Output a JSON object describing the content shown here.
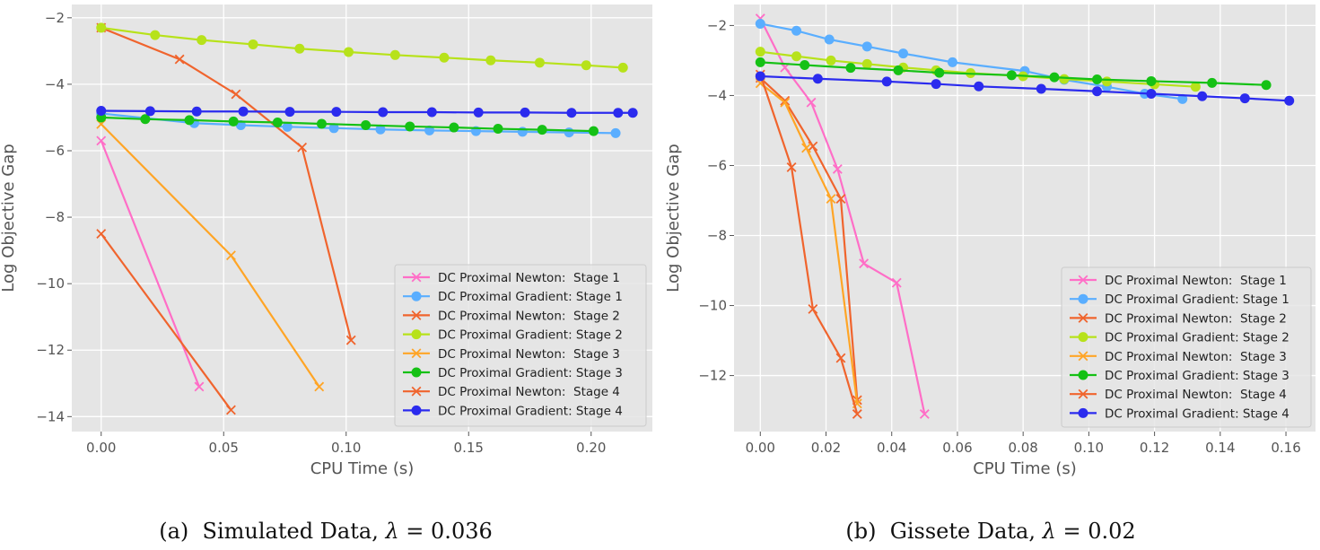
{
  "chart_data": [
    {
      "type": "line",
      "xlabel": "CPU Time (s)",
      "ylabel": "Log Objective Gap",
      "xlim": [
        -0.012,
        0.225
      ],
      "ylim": [
        -14.45,
        -1.6
      ],
      "xticks": [
        0.0,
        0.05,
        0.1,
        0.15,
        0.2
      ],
      "xtick_labels": [
        "0.00",
        "0.05",
        "0.10",
        "0.15",
        "0.20"
      ],
      "yticks": [
        -14,
        -12,
        -10,
        -8,
        -6,
        -4,
        -2
      ],
      "ytick_labels": [
        "−14",
        "−12",
        "−10",
        "−8",
        "−6",
        "−4",
        "−2"
      ],
      "legend_position": "lower-right",
      "caption_prefix": "(a)  Simulated Data, ",
      "caption_symbol": "λ",
      "caption_suffix": " = 0.036",
      "series": [
        {
          "name": "DC Proximal Newton:  Stage 1",
          "color": "#ff6ec7",
          "marker": "x",
          "x": [
            0.0,
            0.04
          ],
          "y": [
            -5.7,
            -13.1
          ]
        },
        {
          "name": "DC Proximal Gradient: Stage 1",
          "color": "#5aaeff",
          "marker": "o",
          "x": [
            0.0,
            0.038,
            0.057,
            0.076,
            0.095,
            0.114,
            0.134,
            0.153,
            0.172,
            0.191,
            0.21
          ],
          "y": [
            -4.88,
            -5.17,
            -5.23,
            -5.28,
            -5.32,
            -5.36,
            -5.39,
            -5.41,
            -5.43,
            -5.45,
            -5.47
          ]
        },
        {
          "name": "DC Proximal Newton:  Stage 2",
          "color": "#f0642d",
          "marker": "x",
          "x": [
            0.0,
            0.032,
            0.055,
            0.082,
            0.102
          ],
          "y": [
            -2.3,
            -3.25,
            -4.3,
            -5.9,
            -11.7
          ]
        },
        {
          "name": "DC Proximal Gradient: Stage 2",
          "color": "#b7e21a",
          "marker": "o",
          "x": [
            0.0,
            0.022,
            0.041,
            0.062,
            0.081,
            0.101,
            0.12,
            0.14,
            0.159,
            0.179,
            0.198,
            0.213
          ],
          "y": [
            -2.3,
            -2.52,
            -2.67,
            -2.8,
            -2.93,
            -3.03,
            -3.12,
            -3.2,
            -3.28,
            -3.35,
            -3.43,
            -3.5
          ]
        },
        {
          "name": "DC Proximal Newton:  Stage 3",
          "color": "#ffa526",
          "marker": "x",
          "x": [
            0.0,
            0.053,
            0.089
          ],
          "y": [
            -5.2,
            -9.15,
            -13.1
          ]
        },
        {
          "name": "DC Proximal Gradient: Stage 3",
          "color": "#15c115",
          "marker": "o",
          "x": [
            0.0,
            0.018,
            0.036,
            0.054,
            0.072,
            0.09,
            0.108,
            0.126,
            0.144,
            0.162,
            0.18,
            0.201
          ],
          "y": [
            -5.0,
            -5.05,
            -5.08,
            -5.12,
            -5.15,
            -5.19,
            -5.23,
            -5.27,
            -5.3,
            -5.34,
            -5.37,
            -5.41
          ]
        },
        {
          "name": "DC Proximal Newton:  Stage 4",
          "color": "#f0642d",
          "marker": "x",
          "x": [
            0.0,
            0.053
          ],
          "y": [
            -8.5,
            -13.8
          ]
        },
        {
          "name": "DC Proximal Gradient: Stage 4",
          "color": "#2b2bee",
          "marker": "o",
          "x": [
            0.0,
            0.02,
            0.039,
            0.058,
            0.077,
            0.096,
            0.115,
            0.135,
            0.154,
            0.173,
            0.192,
            0.211,
            0.217
          ],
          "y": [
            -4.8,
            -4.81,
            -4.82,
            -4.82,
            -4.83,
            -4.83,
            -4.84,
            -4.84,
            -4.85,
            -4.85,
            -4.86,
            -4.86,
            -4.86
          ]
        }
      ]
    },
    {
      "type": "line",
      "xlabel": "CPU Time (s)",
      "ylabel": "Log Objective Gap",
      "xlim": [
        -0.008,
        0.169
      ],
      "ylim": [
        -13.6,
        -1.4
      ],
      "xticks": [
        0.0,
        0.02,
        0.04,
        0.06,
        0.08,
        0.1,
        0.12,
        0.14,
        0.16
      ],
      "xtick_labels": [
        "0.00",
        "0.02",
        "0.04",
        "0.06",
        "0.08",
        "0.10",
        "0.12",
        "0.14",
        "0.16"
      ],
      "yticks": [
        -12,
        -10,
        -8,
        -6,
        -4,
        -2
      ],
      "ytick_labels": [
        "−12",
        "−10",
        "−8",
        "−6",
        "−4",
        "−2"
      ],
      "legend_position": "lower-right",
      "caption_prefix": "(b)  Gissete Data, ",
      "caption_symbol": "λ",
      "caption_suffix": " = 0.02",
      "series": [
        {
          "name": "DC Proximal Newton:  Stage 1",
          "color": "#ff6ec7",
          "marker": "x",
          "x": [
            0.0,
            0.0075,
            0.0155,
            0.0235,
            0.0315,
            0.0415,
            0.05
          ],
          "y": [
            -1.8,
            -3.2,
            -4.2,
            -6.1,
            -8.8,
            -9.35,
            -13.1
          ]
        },
        {
          "name": "DC Proximal Gradient: Stage 1",
          "color": "#5aaeff",
          "marker": "o",
          "x": [
            0.0,
            0.011,
            0.021,
            0.0325,
            0.0435,
            0.0585,
            0.0805,
            0.0925,
            0.1055,
            0.117,
            0.1285
          ],
          "y": [
            -1.95,
            -2.15,
            -2.4,
            -2.6,
            -2.8,
            -3.05,
            -3.3,
            -3.55,
            -3.75,
            -3.95,
            -4.1
          ]
        },
        {
          "name": "DC Proximal Newton:  Stage 2",
          "color": "#f0642d",
          "marker": "x",
          "x": [
            0.0,
            0.0075,
            0.016,
            0.0245,
            0.0295
          ],
          "y": [
            -3.5,
            -4.15,
            -5.45,
            -6.95,
            -12.7
          ]
        },
        {
          "name": "DC Proximal Gradient: Stage 2",
          "color": "#b7e21a",
          "marker": "o",
          "x": [
            0.0,
            0.011,
            0.0215,
            0.0325,
            0.0435,
            0.0535,
            0.064,
            0.08,
            0.0925,
            0.1055,
            0.12,
            0.1325
          ],
          "y": [
            -2.75,
            -2.88,
            -3.0,
            -3.1,
            -3.2,
            -3.28,
            -3.36,
            -3.45,
            -3.53,
            -3.6,
            -3.68,
            -3.75
          ]
        },
        {
          "name": "DC Proximal Newton:  Stage 3",
          "color": "#ffa526",
          "marker": "x",
          "x": [
            0.0,
            0.0075,
            0.014,
            0.0215,
            0.0295
          ],
          "y": [
            -3.65,
            -4.2,
            -5.5,
            -6.95,
            -12.8
          ]
        },
        {
          "name": "DC Proximal Gradient: Stage 3",
          "color": "#15c115",
          "marker": "o",
          "x": [
            0.0,
            0.0135,
            0.0275,
            0.042,
            0.0545,
            0.0765,
            0.0895,
            0.1025,
            0.119,
            0.1375,
            0.154
          ],
          "y": [
            -3.05,
            -3.13,
            -3.21,
            -3.28,
            -3.35,
            -3.42,
            -3.48,
            -3.54,
            -3.59,
            -3.64,
            -3.7
          ]
        },
        {
          "name": "DC Proximal Newton:  Stage 4",
          "color": "#f0642d",
          "marker": "x",
          "x": [
            0.0,
            0.0095,
            0.016,
            0.0245,
            0.0295
          ],
          "y": [
            -3.4,
            -6.05,
            -10.1,
            -11.5,
            -13.1
          ]
        },
        {
          "name": "DC Proximal Gradient: Stage 4",
          "color": "#2b2bee",
          "marker": "o",
          "x": [
            0.0,
            0.0175,
            0.0385,
            0.0535,
            0.0665,
            0.0855,
            0.1025,
            0.119,
            0.1345,
            0.1475,
            0.161
          ],
          "y": [
            -3.45,
            -3.52,
            -3.6,
            -3.67,
            -3.74,
            -3.81,
            -3.88,
            -3.95,
            -4.02,
            -4.08,
            -4.15
          ]
        }
      ]
    }
  ]
}
